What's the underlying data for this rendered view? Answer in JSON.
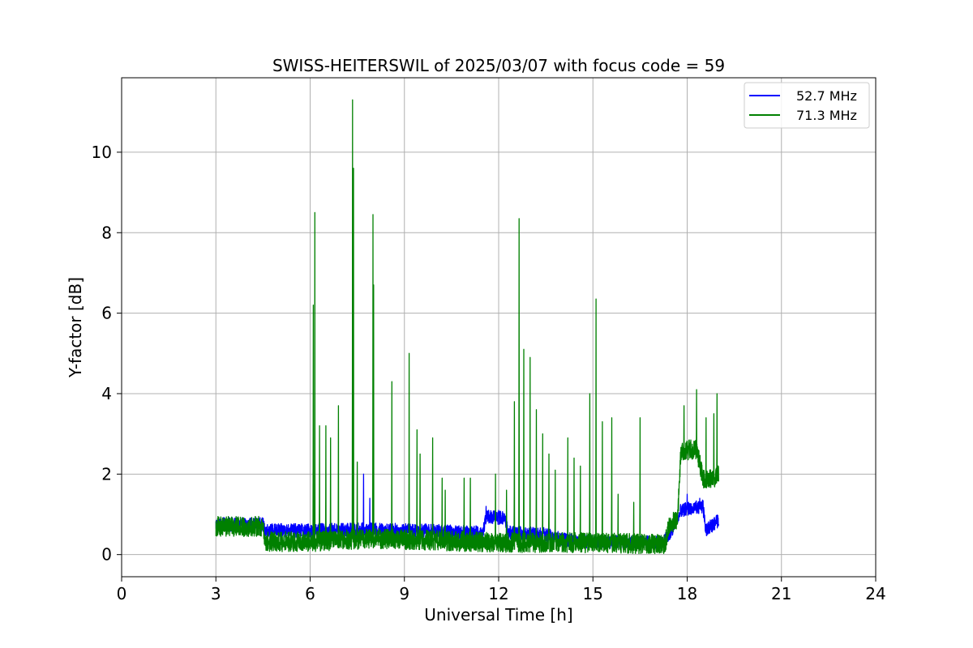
{
  "chart_data": {
    "type": "line",
    "title": "SWISS-HEITERSWIL of 2025/03/07 with focus code = 59",
    "xlabel": "Universal Time [h]",
    "ylabel": "Y-factor [dB]",
    "xlim": [
      0,
      24
    ],
    "ylim": [
      -0.55,
      11.85
    ],
    "xticks": [
      0,
      3,
      6,
      9,
      12,
      15,
      18,
      21,
      24
    ],
    "yticks": [
      0,
      2,
      4,
      6,
      8,
      10
    ],
    "grid": true,
    "legend_position": "top-right",
    "series": [
      {
        "name": "52.7 MHz",
        "color": "#0000ff",
        "baseline": [
          [
            3.0,
            0.75
          ],
          [
            4.5,
            0.75
          ],
          [
            4.55,
            0.6
          ],
          [
            6.0,
            0.6
          ],
          [
            7.5,
            0.62
          ],
          [
            9.5,
            0.6
          ],
          [
            11.0,
            0.55
          ],
          [
            11.5,
            0.55
          ],
          [
            11.6,
            0.95
          ],
          [
            12.2,
            0.9
          ],
          [
            12.3,
            0.55
          ],
          [
            13.5,
            0.5
          ],
          [
            14.2,
            0.35
          ],
          [
            16.0,
            0.3
          ],
          [
            17.2,
            0.3
          ],
          [
            17.5,
            0.6
          ],
          [
            17.8,
            1.1
          ],
          [
            18.5,
            1.2
          ],
          [
            18.6,
            0.6
          ],
          [
            18.9,
            0.8
          ],
          [
            19.0,
            0.85
          ]
        ],
        "noise": 0.17,
        "peaks": [
          [
            7.7,
            2.0
          ],
          [
            7.9,
            1.4
          ],
          [
            11.6,
            1.2
          ],
          [
            12.0,
            1.1
          ],
          [
            18.0,
            1.5
          ],
          [
            18.4,
            1.4
          ]
        ]
      },
      {
        "name": "71.3 MHz",
        "color": "#008000",
        "baseline": [
          [
            3.0,
            0.7
          ],
          [
            4.5,
            0.7
          ],
          [
            4.55,
            0.32
          ],
          [
            6.0,
            0.32
          ],
          [
            8.0,
            0.4
          ],
          [
            10.0,
            0.35
          ],
          [
            12.0,
            0.3
          ],
          [
            14.0,
            0.3
          ],
          [
            16.0,
            0.28
          ],
          [
            17.3,
            0.25
          ],
          [
            17.4,
            0.7
          ],
          [
            17.7,
            0.9
          ],
          [
            17.8,
            2.6
          ],
          [
            18.3,
            2.6
          ],
          [
            18.5,
            1.9
          ],
          [
            18.9,
            1.9
          ],
          [
            19.0,
            2.0
          ]
        ],
        "noise": 0.25,
        "peaks": [
          [
            6.1,
            6.2
          ],
          [
            6.15,
            8.5
          ],
          [
            6.3,
            3.2
          ],
          [
            6.5,
            3.2
          ],
          [
            6.65,
            2.9
          ],
          [
            6.9,
            3.7
          ],
          [
            7.35,
            11.3
          ],
          [
            7.38,
            9.6
          ],
          [
            7.5,
            2.3
          ],
          [
            8.0,
            8.45
          ],
          [
            8.02,
            6.7
          ],
          [
            8.6,
            4.3
          ],
          [
            9.15,
            5.0
          ],
          [
            9.4,
            3.1
          ],
          [
            9.5,
            2.5
          ],
          [
            9.9,
            2.9
          ],
          [
            10.2,
            1.9
          ],
          [
            10.3,
            1.6
          ],
          [
            10.9,
            1.9
          ],
          [
            11.1,
            1.9
          ],
          [
            11.9,
            2.0
          ],
          [
            12.25,
            1.6
          ],
          [
            12.5,
            3.8
          ],
          [
            12.65,
            8.35
          ],
          [
            12.8,
            5.1
          ],
          [
            13.0,
            4.9
          ],
          [
            13.2,
            3.6
          ],
          [
            13.4,
            3.0
          ],
          [
            13.6,
            2.5
          ],
          [
            13.8,
            2.1
          ],
          [
            14.2,
            2.9
          ],
          [
            14.4,
            2.4
          ],
          [
            14.6,
            2.2
          ],
          [
            14.9,
            4.0
          ],
          [
            15.1,
            6.35
          ],
          [
            15.3,
            3.3
          ],
          [
            15.6,
            3.4
          ],
          [
            15.8,
            1.5
          ],
          [
            16.3,
            1.3
          ],
          [
            16.5,
            3.4
          ],
          [
            17.9,
            3.7
          ],
          [
            18.3,
            4.1
          ],
          [
            18.6,
            3.4
          ],
          [
            18.95,
            4.0
          ],
          [
            18.85,
            3.5
          ]
        ]
      }
    ]
  }
}
